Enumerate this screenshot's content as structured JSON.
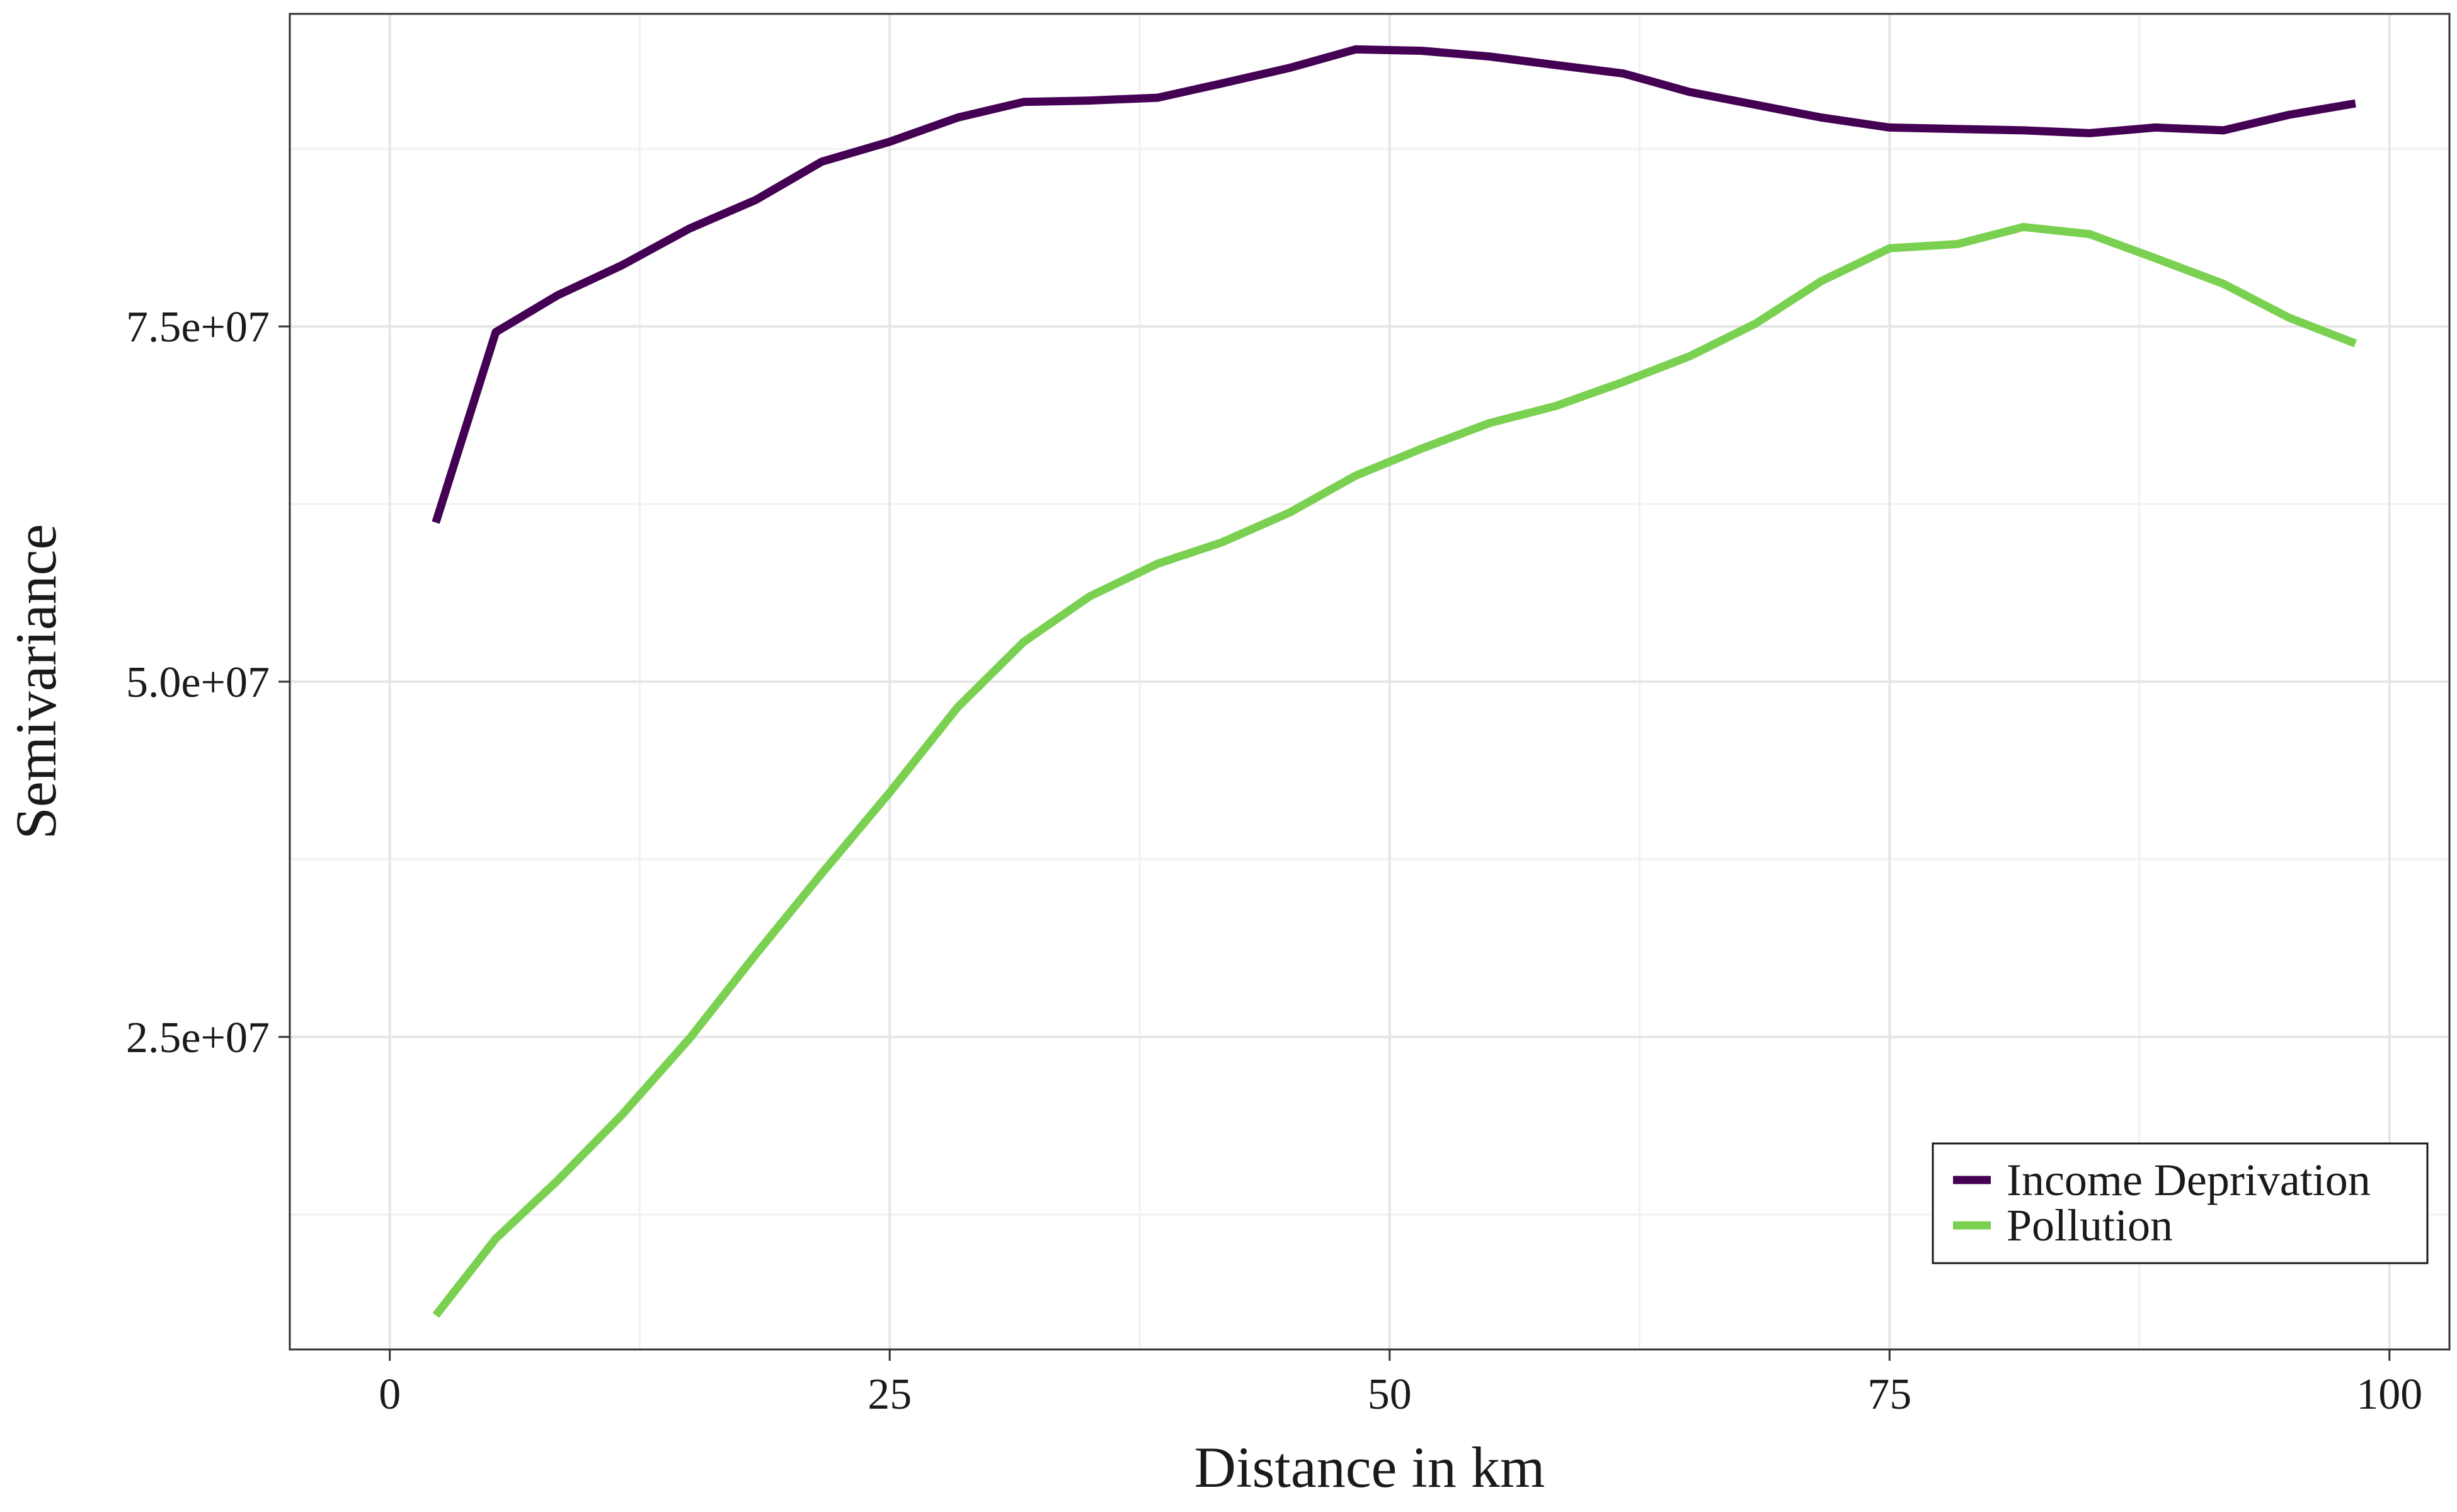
{
  "chart_data": {
    "type": "line",
    "xlabel": "Distance in km",
    "ylabel": "Semivariance",
    "xlim": [
      -5,
      103
    ],
    "ylim": [
      3000000,
      97000000
    ],
    "x_ticks": [
      0,
      25,
      50,
      75,
      100
    ],
    "x_tick_labels": [
      "0",
      "25",
      "50",
      "75",
      "100"
    ],
    "x_minor_ticks": [
      12.5,
      37.5,
      62.5,
      87.5
    ],
    "y_ticks": [
      25000000,
      50000000,
      75000000
    ],
    "y_tick_labels": [
      "2.5e+07",
      "5.0e+07",
      "7.5e+07"
    ],
    "y_minor_ticks": [
      12500000,
      37500000,
      62500000,
      87500000
    ],
    "grid": true,
    "legend_position": "bottom-right",
    "series": [
      {
        "name": "Income Deprivation",
        "color": "#440154",
        "points": [
          [
            2.3,
            61200000
          ],
          [
            5.3,
            74600000
          ],
          [
            8.4,
            77200000
          ],
          [
            11.6,
            79300000
          ],
          [
            15.0,
            81900000
          ],
          [
            18.3,
            83900000
          ],
          [
            21.6,
            86600000
          ],
          [
            25.0,
            88000000
          ],
          [
            28.4,
            89700000
          ],
          [
            31.7,
            90800000
          ],
          [
            35.0,
            90900000
          ],
          [
            38.4,
            91100000
          ],
          [
            41.6,
            92100000
          ],
          [
            45.0,
            93200000
          ],
          [
            48.3,
            94500000
          ],
          [
            51.6,
            94400000
          ],
          [
            55.0,
            94000000
          ],
          [
            58.3,
            93400000
          ],
          [
            61.7,
            92800000
          ],
          [
            65.0,
            91500000
          ],
          [
            68.3,
            90600000
          ],
          [
            71.6,
            89700000
          ],
          [
            75.0,
            89000000
          ],
          [
            78.4,
            88900000
          ],
          [
            81.7,
            88800000
          ],
          [
            85.0,
            88600000
          ],
          [
            88.3,
            89000000
          ],
          [
            91.7,
            88800000
          ],
          [
            95.0,
            89900000
          ],
          [
            98.3,
            90700000
          ]
        ]
      },
      {
        "name": "Pollution",
        "color": "#7ad151",
        "points": [
          [
            2.3,
            5400000
          ],
          [
            5.3,
            10800000
          ],
          [
            8.4,
            14900000
          ],
          [
            11.6,
            19500000
          ],
          [
            15.0,
            24900000
          ],
          [
            18.3,
            30800000
          ],
          [
            21.6,
            36500000
          ],
          [
            25.0,
            42200000
          ],
          [
            28.4,
            48200000
          ],
          [
            31.7,
            52800000
          ],
          [
            35.0,
            56000000
          ],
          [
            38.4,
            58300000
          ],
          [
            41.6,
            59800000
          ],
          [
            45.0,
            61900000
          ],
          [
            48.3,
            64500000
          ],
          [
            51.6,
            66400000
          ],
          [
            55.0,
            68200000
          ],
          [
            58.3,
            69400000
          ],
          [
            61.7,
            71100000
          ],
          [
            65.0,
            72900000
          ],
          [
            68.3,
            75200000
          ],
          [
            71.6,
            78200000
          ],
          [
            75.0,
            80500000
          ],
          [
            78.4,
            80800000
          ],
          [
            81.7,
            82000000
          ],
          [
            85.0,
            81500000
          ],
          [
            88.3,
            79800000
          ],
          [
            91.7,
            78000000
          ],
          [
            95.0,
            75600000
          ],
          [
            98.3,
            73800000
          ]
        ]
      }
    ]
  }
}
